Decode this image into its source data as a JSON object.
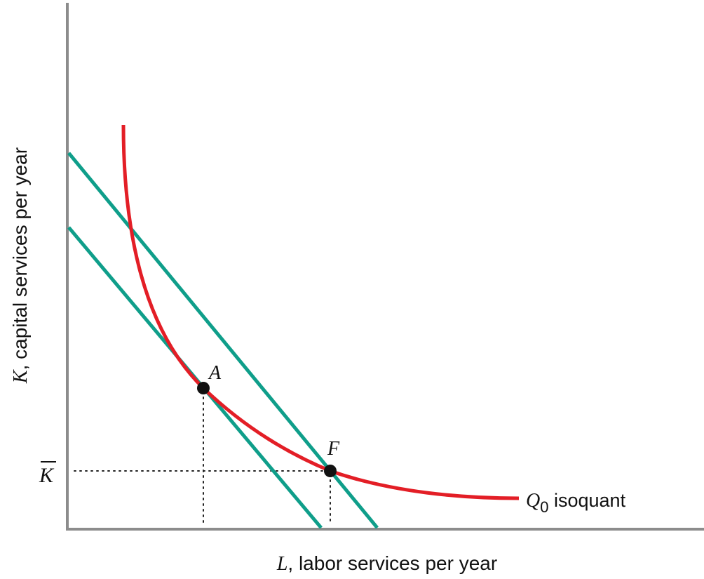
{
  "diagram": {
    "axes": {
      "x_label_var": "L",
      "x_label_rest": ", labor services per year",
      "y_label_var": "K",
      "y_label_rest": ", capital services per year",
      "y_marker": "K"
    },
    "isoquant": {
      "symbol": "Q",
      "subscript": "0",
      "suffix": " isoquant",
      "color": "#e31e26"
    },
    "isocost_color": "#0f9e8a",
    "points": {
      "a": "A",
      "f": "F"
    }
  }
}
